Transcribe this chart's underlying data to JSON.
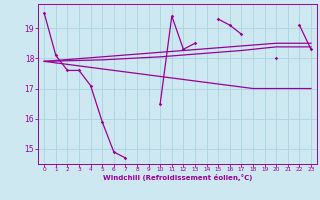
{
  "xlabel": "Windchill (Refroidissement éolien,°C)",
  "background_color": "#cde8f0",
  "grid_color": "#aad4e0",
  "line_color": "#990099",
  "hours": [
    0,
    1,
    2,
    3,
    4,
    5,
    6,
    7,
    8,
    9,
    10,
    11,
    12,
    13,
    14,
    15,
    16,
    17,
    18,
    19,
    20,
    21,
    22,
    23
  ],
  "series1": [
    19.5,
    18.1,
    17.6,
    17.6,
    17.1,
    15.9,
    14.9,
    14.7,
    null,
    null,
    16.5,
    19.4,
    18.3,
    18.5,
    null,
    19.3,
    19.1,
    18.8,
    null,
    null,
    18.0,
    null,
    19.1,
    18.3
  ],
  "series2": [
    17.9,
    17.85,
    17.8,
    17.75,
    17.7,
    17.65,
    17.6,
    17.55,
    17.5,
    17.45,
    17.4,
    17.35,
    17.3,
    17.25,
    17.2,
    17.15,
    17.1,
    17.05,
    17.0,
    17.0,
    17.0,
    17.0,
    17.0,
    17.0
  ],
  "series3": [
    17.9,
    17.93,
    17.96,
    17.99,
    18.02,
    18.05,
    18.08,
    18.11,
    18.14,
    18.17,
    18.2,
    18.23,
    18.26,
    18.29,
    18.32,
    18.35,
    18.38,
    18.41,
    18.44,
    18.47,
    18.5,
    18.5,
    18.5,
    18.5
  ],
  "series4": [
    17.9,
    17.91,
    17.92,
    17.93,
    17.94,
    17.95,
    17.97,
    17.99,
    18.01,
    18.03,
    18.05,
    18.08,
    18.11,
    18.14,
    18.17,
    18.2,
    18.23,
    18.26,
    18.3,
    18.34,
    18.38,
    18.38,
    18.38,
    18.38
  ],
  "ylim": [
    14.5,
    19.8
  ],
  "yticks": [
    15,
    16,
    17,
    18,
    19
  ],
  "xticks": [
    0,
    1,
    2,
    3,
    4,
    5,
    6,
    7,
    8,
    9,
    10,
    11,
    12,
    13,
    14,
    15,
    16,
    17,
    18,
    19,
    20,
    21,
    22,
    23
  ]
}
